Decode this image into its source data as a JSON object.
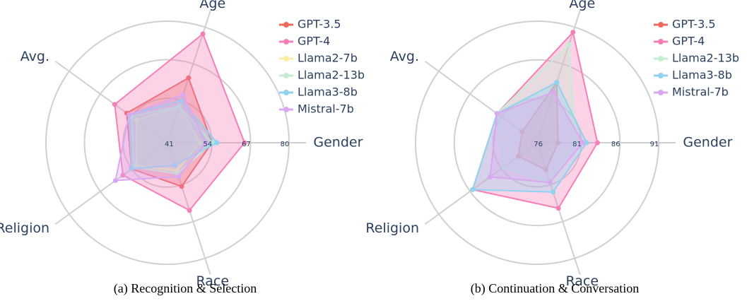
{
  "chart_data": [
    {
      "type": "radar",
      "caption": "(a) Recognition & Selection",
      "categories": [
        "Age",
        "Gender",
        "Race",
        "Religion",
        "Avg."
      ],
      "rlim": [
        39,
        80
      ],
      "rticks": [
        41,
        54,
        67,
        80
      ],
      "grid": true,
      "series": [
        {
          "name": "GPT-3.5",
          "color": "#ec6a5e",
          "values": [
            62,
            54,
            54.5,
            54,
            56
          ]
        },
        {
          "name": "GPT-4",
          "color": "#f77fb8",
          "values": [
            77.6,
            65,
            63,
            57.6,
            61
          ]
        },
        {
          "name": "Llama2-7b",
          "color": "#fbeea0",
          "values": [
            52,
            50,
            49,
            52,
            52
          ]
        },
        {
          "name": "Llama2-13b",
          "color": "#c3eed3",
          "values": [
            52,
            54,
            50,
            53,
            54
          ]
        },
        {
          "name": "Llama3-8b",
          "color": "#8fd3f0",
          "values": [
            54,
            55.7,
            47,
            54,
            55
          ]
        },
        {
          "name": "Mistral-7b",
          "color": "#d9a8f0",
          "values": [
            56,
            52,
            51,
            60.7,
            55
          ]
        }
      ]
    },
    {
      "type": "radar",
      "caption": "(b) Continuation & Conversation",
      "categories": [
        "Age",
        "Gender",
        "Race",
        "Religion",
        "Avg."
      ],
      "rlim": [
        75.3,
        91
      ],
      "rticks": [
        76,
        81,
        86,
        91
      ],
      "grid": true,
      "series": [
        {
          "name": "GPT-3.5",
          "color": "#ec6a5e",
          "values": [
            83.5,
            78,
            79,
            78.3,
            77.7
          ]
        },
        {
          "name": "GPT-4",
          "color": "#f77fb8",
          "values": [
            90.3,
            83.1,
            84.2,
            85.6,
            81.7
          ]
        },
        {
          "name": "Llama2-13b",
          "color": "#c3eed3",
          "values": [
            88.6,
            80.3,
            80.7,
            80.7,
            81.7
          ]
        },
        {
          "name": "Llama3-8b",
          "color": "#8fd3f0",
          "values": [
            83.5,
            81.7,
            82,
            85.6,
            81.7
          ]
        },
        {
          "name": "Mistral-7b",
          "color": "#d9a8f0",
          "values": [
            82.2,
            81.2,
            80.7,
            82.8,
            81.7
          ]
        }
      ]
    }
  ]
}
